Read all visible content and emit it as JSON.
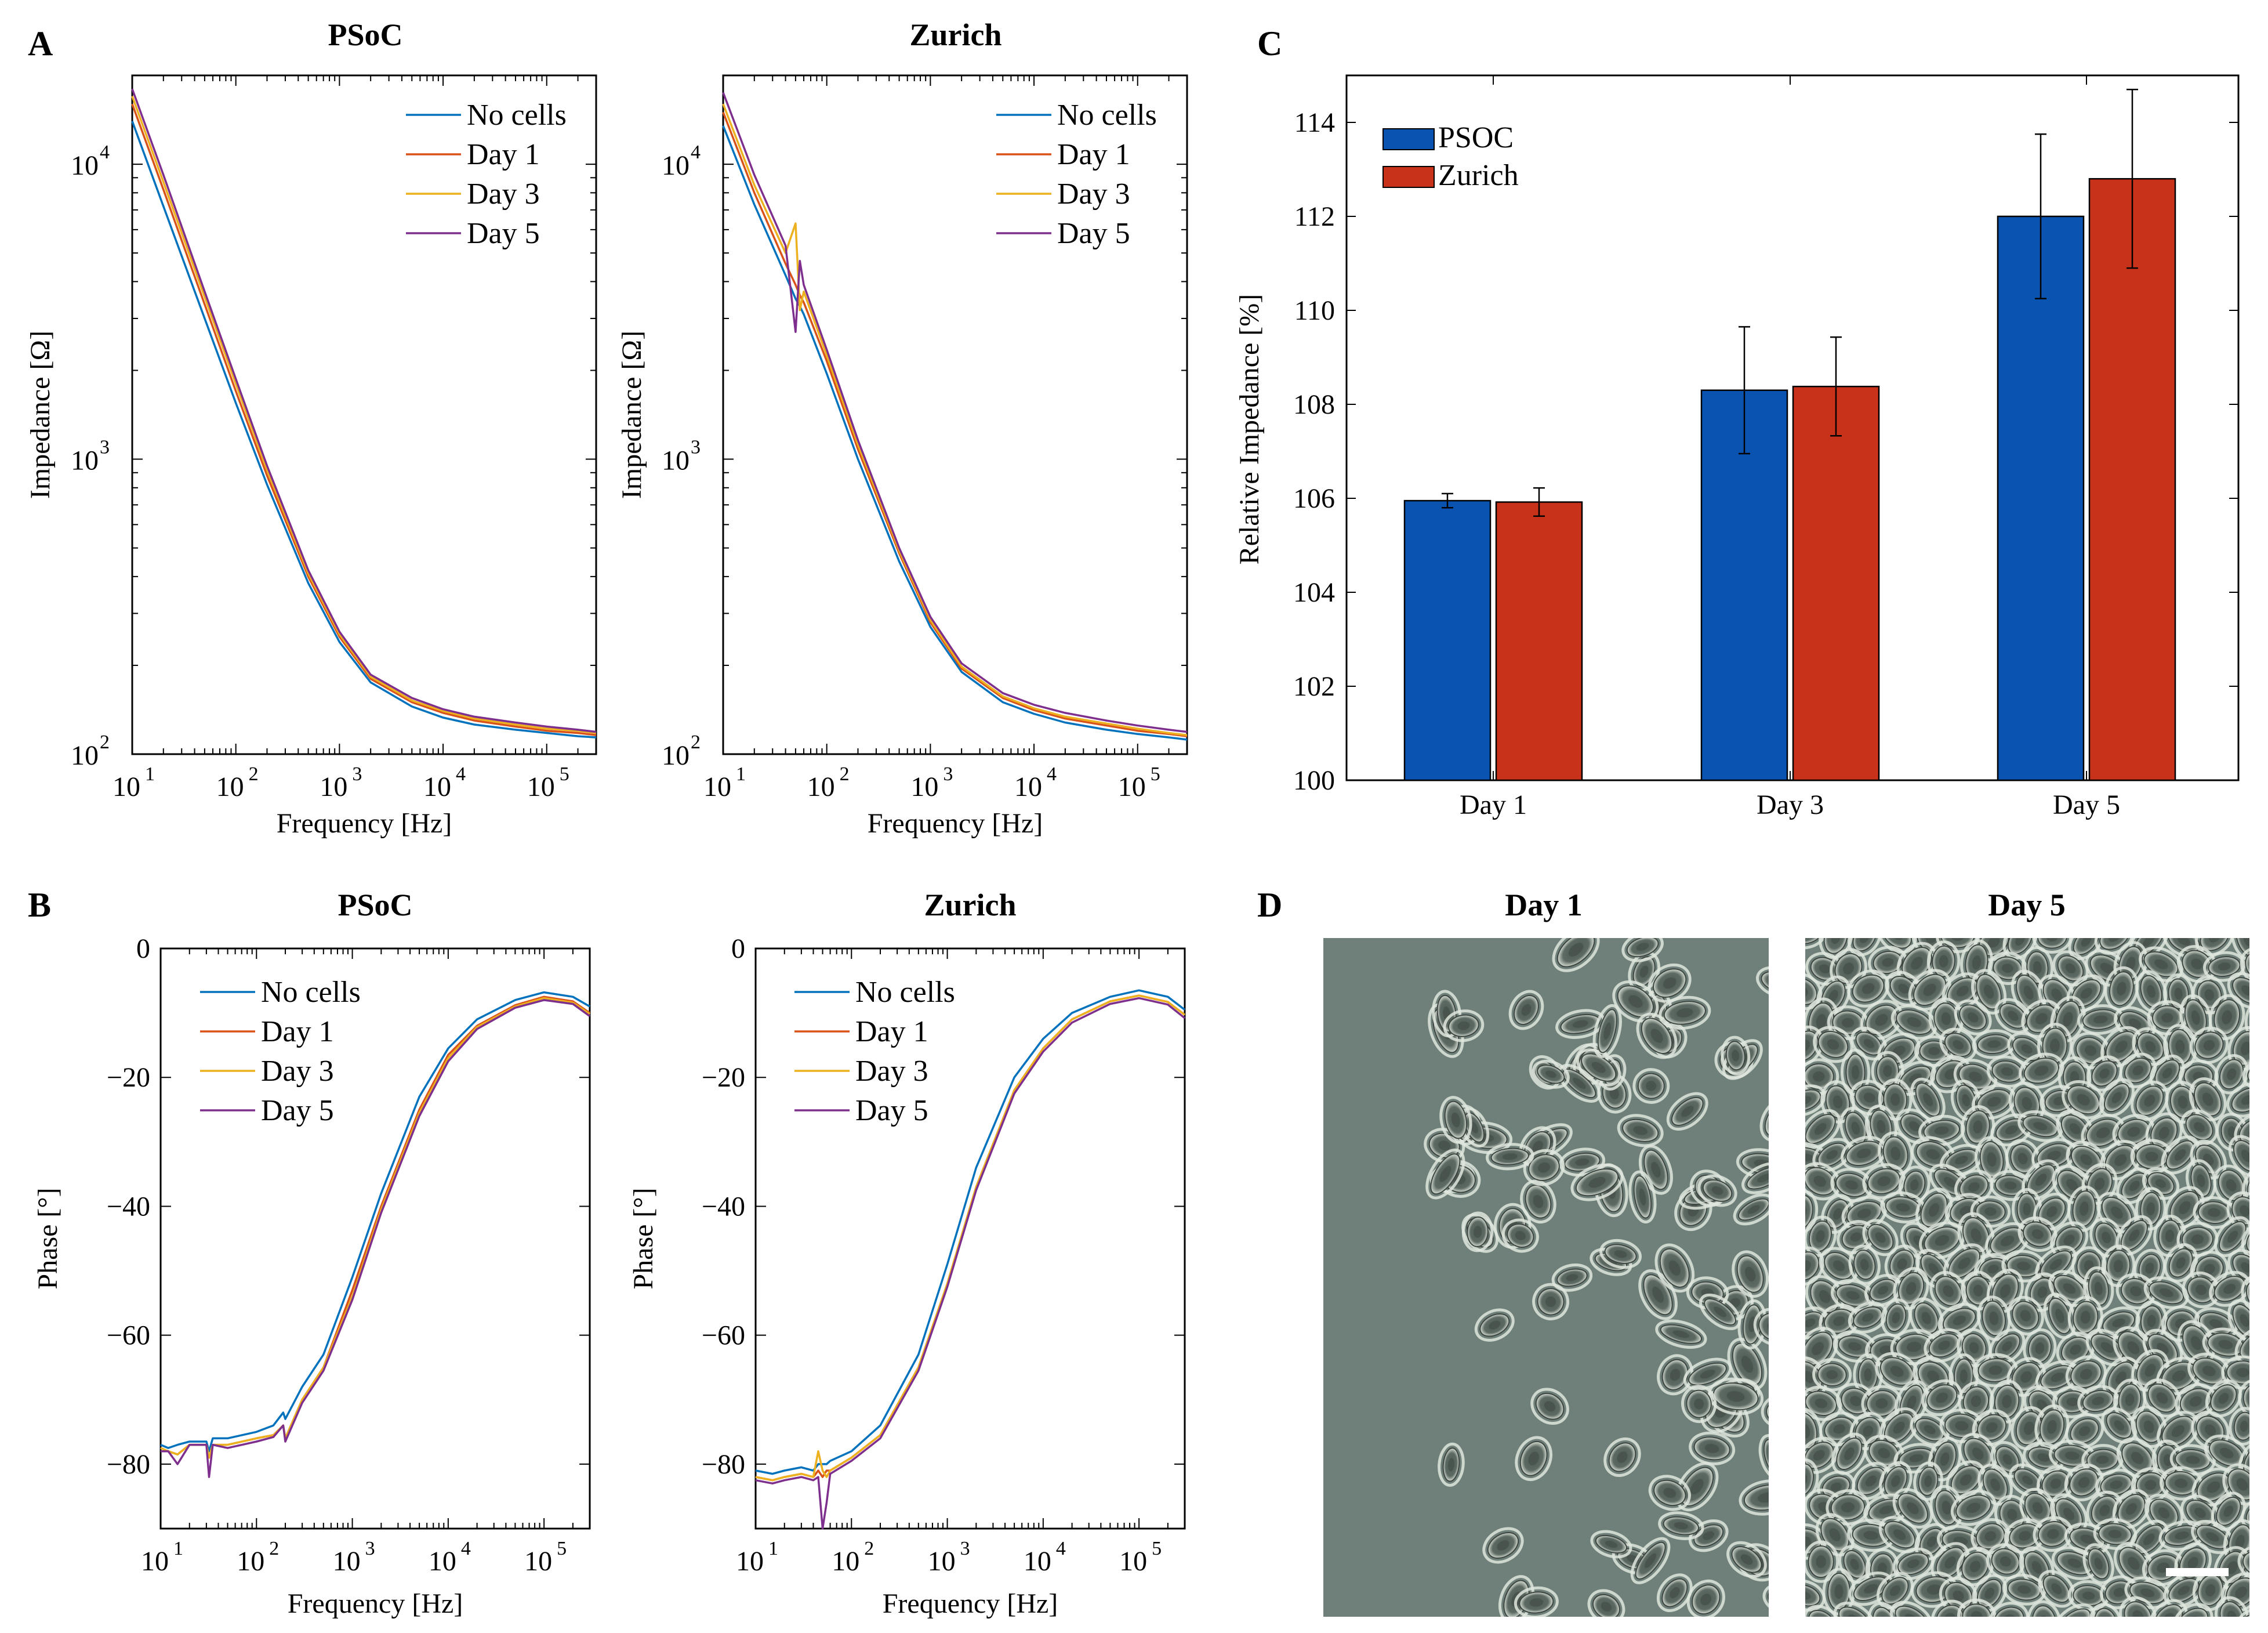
{
  "panels": {
    "A": {
      "letter": "A"
    },
    "B": {
      "letter": "B"
    },
    "C": {
      "letter": "C"
    },
    "D": {
      "letter": "D"
    }
  },
  "chart_data": [
    {
      "id": "A-psoc",
      "panel": "A",
      "type": "line",
      "title": "PSoC",
      "xlabel": "Frequency [Hz]",
      "ylabel": "Impedance [Ω]",
      "xscale": "log",
      "yscale": "log",
      "xlim": [
        10,
        300000
      ],
      "ylim": [
        100,
        20000
      ],
      "xticks": [
        10,
        100,
        1000,
        10000,
        100000
      ],
      "xtick_labels": [
        [
          "10",
          "1"
        ],
        [
          "10",
          "2"
        ],
        [
          "10",
          "3"
        ],
        [
          "10",
          "4"
        ],
        [
          "10",
          "5"
        ]
      ],
      "yticks": [
        100,
        1000,
        10000
      ],
      "ytick_labels": [
        [
          "10",
          "2"
        ],
        [
          "10",
          "3"
        ],
        [
          "10",
          "4"
        ]
      ],
      "legend_position": "top-right",
      "x": [
        10,
        20,
        50,
        100,
        200,
        500,
        1000,
        2000,
        5000,
        10000,
        20000,
        50000,
        100000,
        200000,
        300000
      ],
      "series": [
        {
          "name": "No cells",
          "color": "#0072BD",
          "values": [
            14000,
            7200,
            3000,
            1550,
            820,
            380,
            240,
            175,
            145,
            133,
            126,
            121,
            118,
            115,
            114
          ]
        },
        {
          "name": "Day 1",
          "color": "#D95319",
          "values": [
            16000,
            8200,
            3350,
            1700,
            880,
            400,
            250,
            180,
            150,
            138,
            130,
            124,
            120,
            118,
            116
          ]
        },
        {
          "name": "Day 3",
          "color": "#EDB120",
          "values": [
            17000,
            8700,
            3550,
            1800,
            920,
            410,
            255,
            183,
            152,
            140,
            132,
            126,
            122,
            120,
            118
          ]
        },
        {
          "name": "Day 5",
          "color": "#7E2F8E",
          "values": [
            18000,
            9200,
            3700,
            1870,
            950,
            420,
            260,
            186,
            155,
            142,
            134,
            128,
            124,
            121,
            119
          ]
        }
      ]
    },
    {
      "id": "A-zurich",
      "panel": "A",
      "type": "line",
      "title": "Zurich",
      "xlabel": "Frequency [Hz]",
      "ylabel": "Impedance [Ω]",
      "xscale": "log",
      "yscale": "log",
      "xlim": [
        10,
        300000
      ],
      "ylim": [
        100,
        20000
      ],
      "xticks": [
        10,
        100,
        1000,
        10000,
        100000
      ],
      "xtick_labels": [
        [
          "10",
          "1"
        ],
        [
          "10",
          "2"
        ],
        [
          "10",
          "3"
        ],
        [
          "10",
          "4"
        ],
        [
          "10",
          "5"
        ]
      ],
      "yticks": [
        100,
        1000,
        10000
      ],
      "ytick_labels": [
        [
          "10",
          "2"
        ],
        [
          "10",
          "3"
        ],
        [
          "10",
          "4"
        ]
      ],
      "legend_position": "top-right",
      "x": [
        10,
        20,
        40,
        50,
        55,
        60,
        100,
        200,
        500,
        1000,
        2000,
        5000,
        10000,
        20000,
        50000,
        100000,
        200000,
        300000
      ],
      "series": [
        {
          "name": "No cells",
          "color": "#0072BD",
          "values": [
            13500,
            7300,
            4200,
            3500,
            3300,
            3100,
            1950,
            1000,
            450,
            270,
            190,
            150,
            137,
            128,
            121,
            117,
            114,
            112
          ]
        },
        {
          "name": "Day 1",
          "color": "#D95319",
          "values": [
            15000,
            8000,
            4600,
            3900,
            3600,
            3400,
            2150,
            1080,
            480,
            280,
            195,
            155,
            141,
            132,
            125,
            120,
            117,
            115
          ]
        },
        {
          "name": "Day 3",
          "color": "#EDB120",
          "values": [
            16000,
            8500,
            5000,
            6300,
            3200,
            3700,
            2250,
            1120,
            490,
            285,
            198,
            157,
            143,
            134,
            127,
            122,
            118,
            116
          ]
        },
        {
          "name": "Day 5",
          "color": "#7E2F8E",
          "values": [
            17500,
            9200,
            5300,
            2700,
            4700,
            3900,
            2350,
            1160,
            500,
            292,
            203,
            161,
            147,
            138,
            130,
            125,
            121,
            119
          ]
        }
      ]
    },
    {
      "id": "B-psoc",
      "panel": "B",
      "type": "line",
      "title": "PSoC",
      "xlabel": "Frequency [Hz]",
      "ylabel": "Phase [°]",
      "xscale": "log",
      "yscale": "linear",
      "xlim": [
        10,
        300000
      ],
      "ylim": [
        -90,
        0
      ],
      "xticks": [
        10,
        100,
        1000,
        10000,
        100000
      ],
      "xtick_labels": [
        [
          "10",
          "1"
        ],
        [
          "10",
          "2"
        ],
        [
          "10",
          "3"
        ],
        [
          "10",
          "4"
        ],
        [
          "10",
          "5"
        ]
      ],
      "yticks": [
        -80,
        -60,
        -40,
        -20,
        0
      ],
      "ytick_labels": [
        [
          "−80",
          ""
        ],
        [
          "−60",
          ""
        ],
        [
          "−40",
          ""
        ],
        [
          "−20",
          ""
        ],
        [
          "0",
          ""
        ]
      ],
      "legend_position": "top-left",
      "x": [
        10,
        12,
        15,
        20,
        30,
        32,
        35,
        50,
        100,
        150,
        190,
        200,
        300,
        500,
        1000,
        2000,
        5000,
        10000,
        20000,
        50000,
        100000,
        200000,
        300000
      ],
      "series": [
        {
          "name": "No cells",
          "color": "#0072BD",
          "values": [
            -77,
            -77.5,
            -77,
            -76.5,
            -76.5,
            -78,
            -76,
            -76,
            -75,
            -74,
            -72,
            -73,
            -68,
            -63,
            -51,
            -38,
            -23,
            -15.5,
            -11,
            -8,
            -6.8,
            -7.5,
            -9
          ]
        },
        {
          "name": "Day 1",
          "color": "#D95319",
          "values": [
            -77.5,
            -78,
            -78.5,
            -77,
            -77,
            -79,
            -77,
            -77,
            -76,
            -75.5,
            -74,
            -76,
            -70,
            -65,
            -53,
            -40,
            -25,
            -16.5,
            -12,
            -8.8,
            -7.5,
            -8.2,
            -10
          ]
        },
        {
          "name": "Day 3",
          "color": "#EDB120",
          "values": [
            -77.5,
            -78,
            -78.5,
            -77,
            -77,
            -79,
            -77,
            -77,
            -76,
            -75.5,
            -74,
            -76,
            -70,
            -65,
            -54,
            -40.5,
            -25.5,
            -17,
            -12.2,
            -9,
            -7.7,
            -8.4,
            -10.2
          ]
        },
        {
          "name": "Day 5",
          "color": "#7E2F8E",
          "values": [
            -78,
            -78,
            -80,
            -77,
            -77,
            -82,
            -77,
            -77.5,
            -76.5,
            -75.8,
            -74,
            -76.5,
            -70.5,
            -65.5,
            -54.5,
            -41,
            -26,
            -17.5,
            -12.5,
            -9.2,
            -8,
            -8.6,
            -10.5
          ]
        }
      ]
    },
    {
      "id": "B-zurich",
      "panel": "B",
      "type": "line",
      "title": "Zurich",
      "xlabel": "Frequency [Hz]",
      "ylabel": "Phase [°]",
      "xscale": "log",
      "yscale": "linear",
      "xlim": [
        10,
        300000
      ],
      "ylim": [
        -90,
        0
      ],
      "xticks": [
        10,
        100,
        1000,
        10000,
        100000
      ],
      "xtick_labels": [
        [
          "10",
          "1"
        ],
        [
          "10",
          "2"
        ],
        [
          "10",
          "3"
        ],
        [
          "10",
          "4"
        ],
        [
          "10",
          "5"
        ]
      ],
      "yticks": [
        -80,
        -60,
        -40,
        -20,
        0
      ],
      "ytick_labels": [
        [
          "−80",
          ""
        ],
        [
          "−60",
          ""
        ],
        [
          "−40",
          ""
        ],
        [
          "−20",
          ""
        ],
        [
          "0",
          ""
        ]
      ],
      "legend_position": "top-left",
      "x": [
        10,
        15,
        20,
        30,
        40,
        45,
        50,
        55,
        60,
        100,
        200,
        500,
        1000,
        2000,
        5000,
        10000,
        20000,
        50000,
        100000,
        200000,
        300000
      ],
      "series": [
        {
          "name": "No cells",
          "color": "#0072BD",
          "values": [
            -81,
            -81.5,
            -81,
            -80.5,
            -81,
            -80,
            -80,
            -80,
            -79.5,
            -78,
            -74,
            -63,
            -49,
            -34,
            -20,
            -14,
            -10,
            -7.5,
            -6.5,
            -7.5,
            -9.5
          ]
        },
        {
          "name": "Day 1",
          "color": "#D95319",
          "values": [
            -82,
            -82.5,
            -82,
            -81.5,
            -82,
            -81,
            -82,
            -81,
            -81,
            -79,
            -75.5,
            -65,
            -52,
            -37,
            -22,
            -15.5,
            -11,
            -8.2,
            -7.3,
            -8.3,
            -10.3
          ]
        },
        {
          "name": "Day 3",
          "color": "#EDB120",
          "values": [
            -82,
            -82.5,
            -82,
            -81.5,
            -82,
            -78,
            -81,
            -82,
            -81,
            -79,
            -75.5,
            -65,
            -52,
            -37,
            -22,
            -15.5,
            -11,
            -8.2,
            -7.3,
            -8.3,
            -10.3
          ]
        },
        {
          "name": "Day 5",
          "color": "#7E2F8E",
          "values": [
            -82.5,
            -83,
            -82.5,
            -82,
            -82.5,
            -82,
            -90,
            -86,
            -81.5,
            -79.5,
            -76,
            -65.5,
            -52.5,
            -37.5,
            -22.5,
            -16,
            -11.5,
            -8.6,
            -7.7,
            -8.7,
            -10.8
          ]
        }
      ]
    },
    {
      "id": "C",
      "panel": "C",
      "type": "bar",
      "title": "",
      "xlabel": "",
      "ylabel": "Relative Impedance [%]",
      "ylim": [
        100,
        115
      ],
      "yticks": [
        100,
        102,
        104,
        106,
        108,
        110,
        112,
        114
      ],
      "categories": [
        "Day 1",
        "Day 3",
        "Day 5"
      ],
      "legend_position": "top-left",
      "series": [
        {
          "name": "PSOC",
          "color": "#0A53B0",
          "values": [
            105.95,
            108.3,
            112.0
          ],
          "errors": [
            0.15,
            1.35,
            1.75
          ]
        },
        {
          "name": "Zurich",
          "color": "#C8321A",
          "values": [
            105.92,
            108.38,
            112.8
          ],
          "errors": [
            0.3,
            1.05,
            1.9
          ]
        }
      ]
    }
  ],
  "micrographs": {
    "day1_title": "Day 1",
    "day5_title": "Day 5",
    "background_color": "#6f7f79",
    "cell_color": "#5a655f",
    "halo_color": "#dfe6dd",
    "scalebar_color": "#ffffff"
  }
}
